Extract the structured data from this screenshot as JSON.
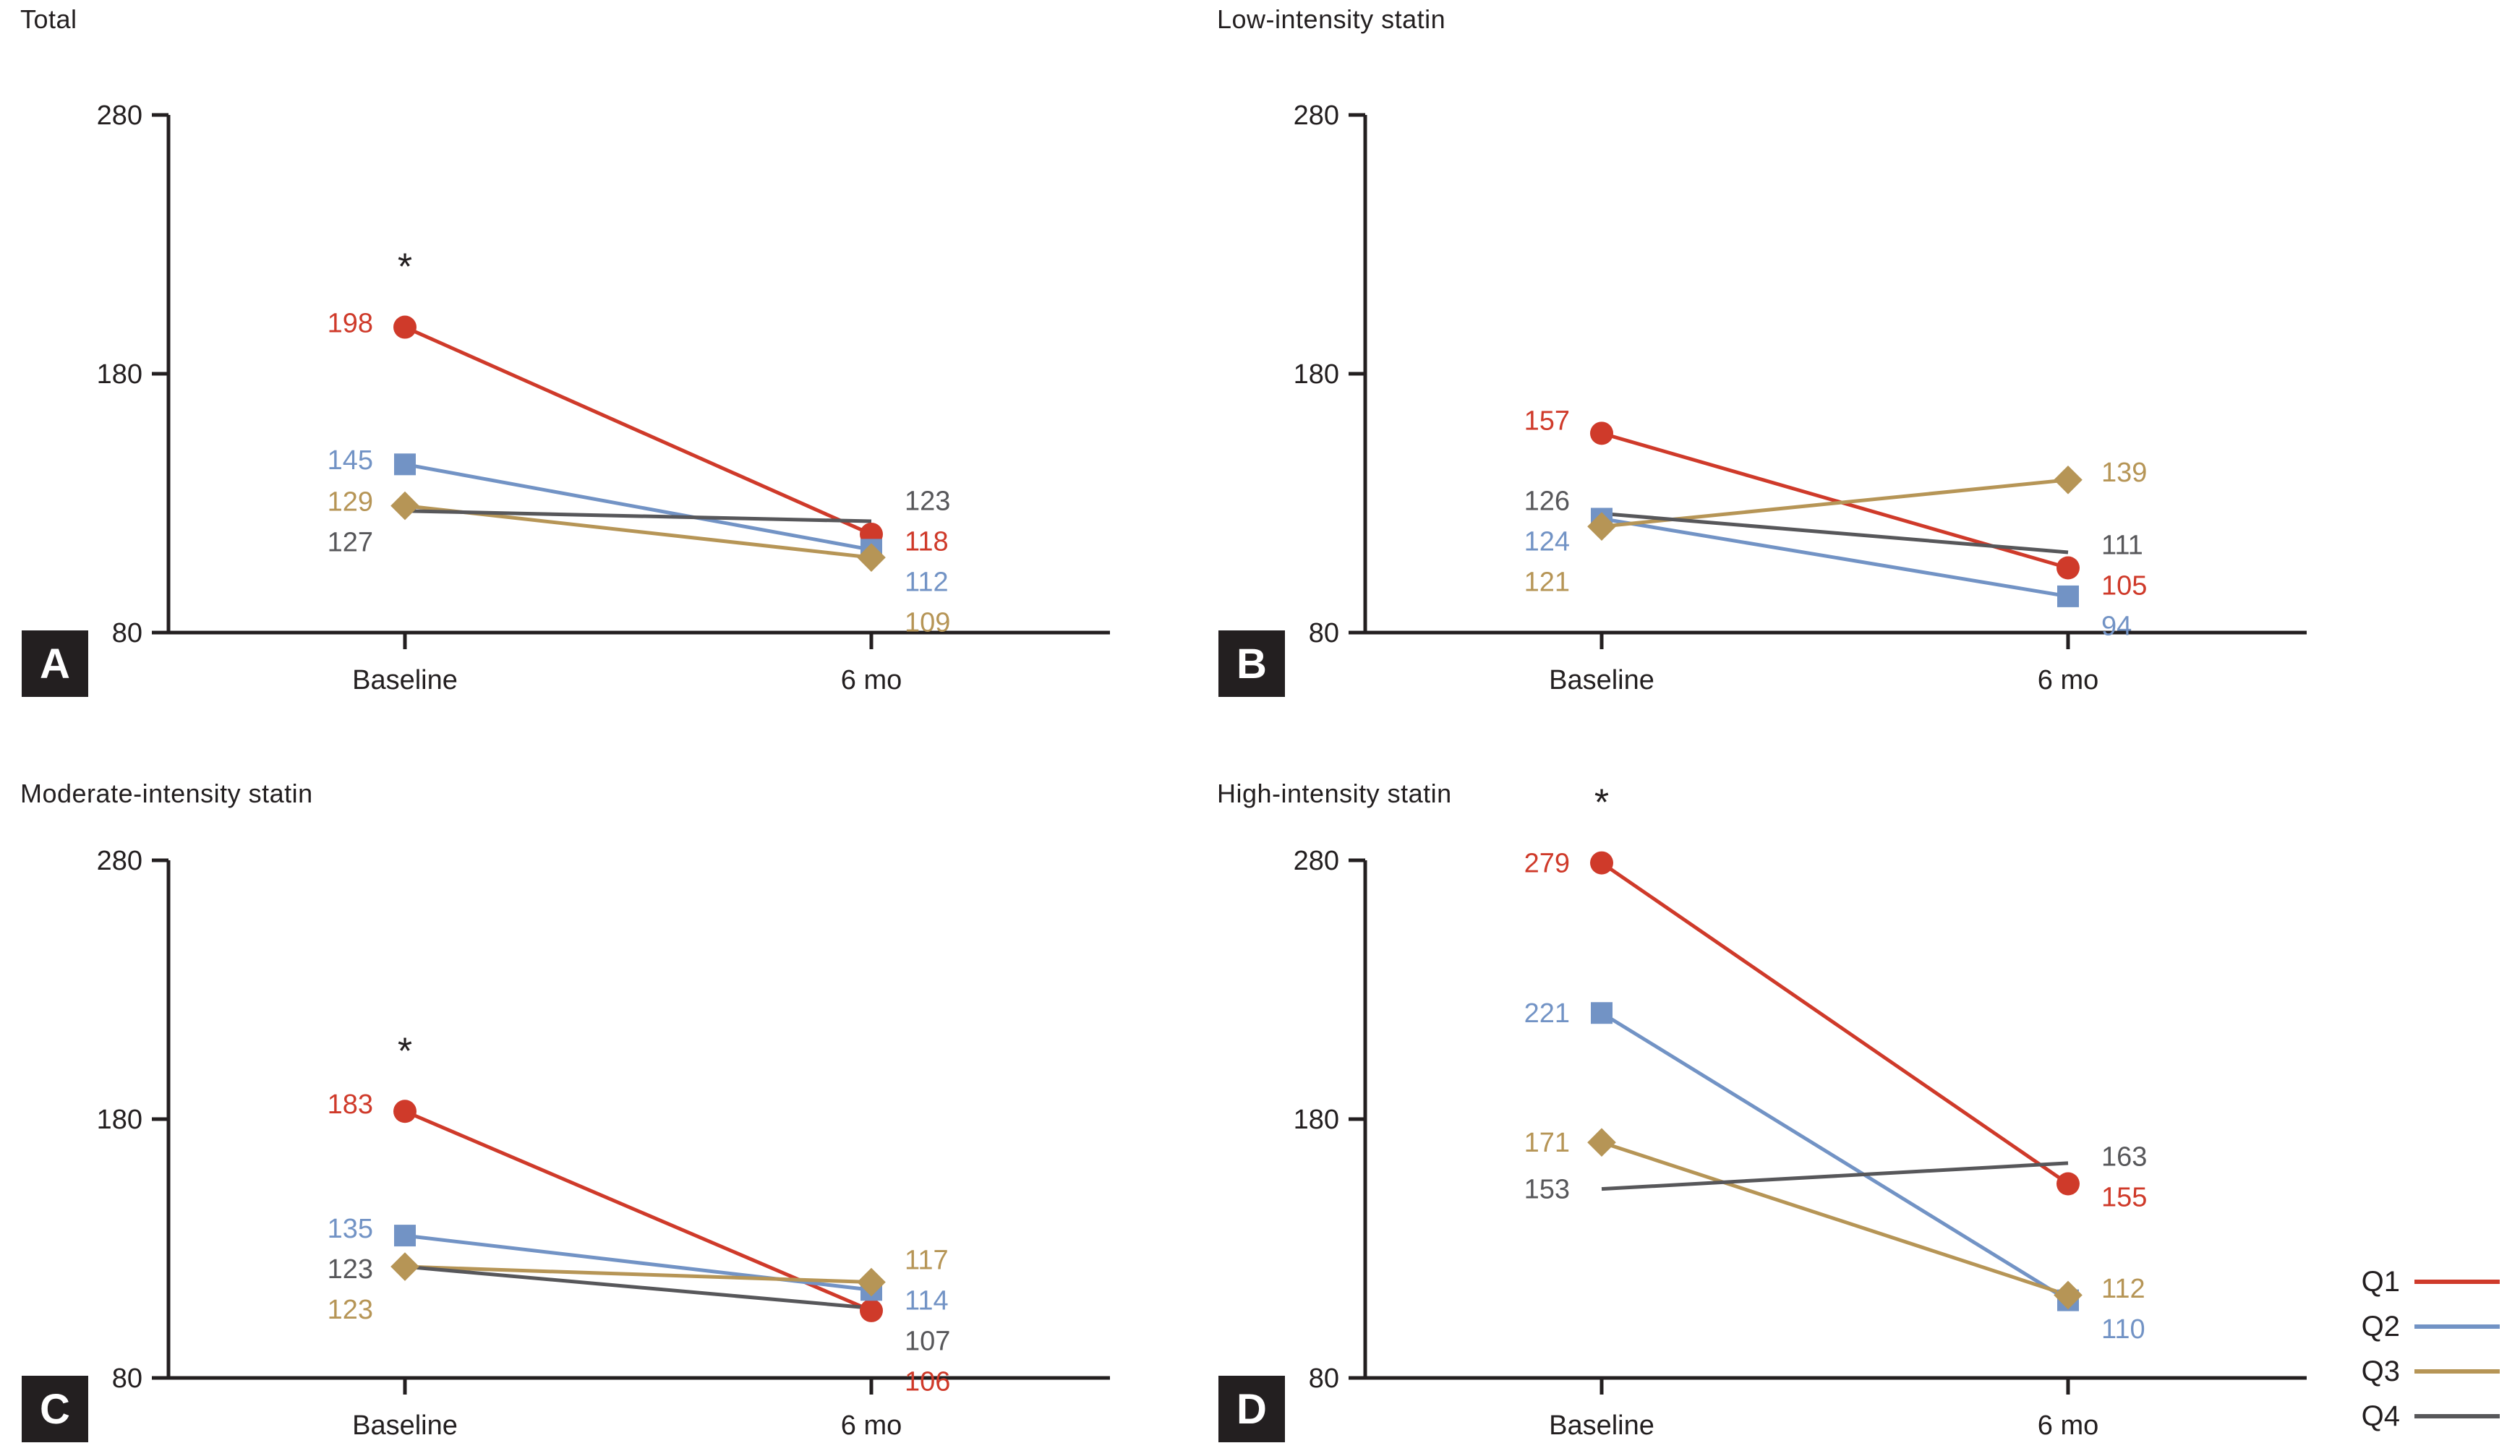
{
  "colors": {
    "q1": "#cf3a2a",
    "q2": "#7293c5",
    "q3": "#b69556",
    "q4": "#57575a",
    "axis": "#231f20",
    "text": "#231f20",
    "panel_label_bg": "#231f20",
    "panel_label_fg": "#ffffff"
  },
  "axes": {
    "ylim": [
      80,
      280
    ],
    "y_ticks": [
      280,
      180,
      80
    ],
    "x_ticks": [
      "Baseline",
      "6 mo"
    ],
    "grid": "off"
  },
  "legend": {
    "position": "bottom-right",
    "items": [
      {
        "label": "Q1",
        "color_key": "q1"
      },
      {
        "label": "Q2",
        "color_key": "q2"
      },
      {
        "label": "Q3",
        "color_key": "q3"
      },
      {
        "label": "Q4",
        "color_key": "q4"
      }
    ]
  },
  "chart_data": [
    {
      "id": "A",
      "type": "line",
      "title": "Total",
      "panel_letter": "A",
      "asterisk": "*",
      "x": [
        "Baseline",
        "6 mo"
      ],
      "ylim": [
        80,
        280
      ],
      "series": [
        {
          "name": "Q1",
          "color_key": "q1",
          "marker": "circle",
          "values": [
            198,
            118
          ]
        },
        {
          "name": "Q2",
          "color_key": "q2",
          "marker": "square",
          "values": [
            145,
            112
          ]
        },
        {
          "name": "Q3",
          "color_key": "q3",
          "marker": "diamond",
          "values": [
            129,
            109
          ]
        },
        {
          "name": "Q4",
          "color_key": "q4",
          "marker": "none",
          "values": [
            127,
            123
          ]
        }
      ]
    },
    {
      "id": "B",
      "type": "line",
      "title": "Low-intensity statin",
      "panel_letter": "B",
      "asterisk": "",
      "x": [
        "Baseline",
        "6 mo"
      ],
      "ylim": [
        80,
        280
      ],
      "series": [
        {
          "name": "Q1",
          "color_key": "q1",
          "marker": "circle",
          "values": [
            157,
            105
          ]
        },
        {
          "name": "Q2",
          "color_key": "q2",
          "marker": "square",
          "values": [
            124,
            94
          ]
        },
        {
          "name": "Q3",
          "color_key": "q3",
          "marker": "diamond",
          "values": [
            121,
            139
          ]
        },
        {
          "name": "Q4",
          "color_key": "q4",
          "marker": "none",
          "values": [
            126,
            111
          ]
        }
      ]
    },
    {
      "id": "C",
      "type": "line",
      "title": "Moderate-intensity statin",
      "panel_letter": "C",
      "asterisk": "*",
      "x": [
        "Baseline",
        "6 mo"
      ],
      "ylim": [
        80,
        280
      ],
      "series": [
        {
          "name": "Q1",
          "color_key": "q1",
          "marker": "circle",
          "values": [
            183,
            106
          ]
        },
        {
          "name": "Q2",
          "color_key": "q2",
          "marker": "square",
          "values": [
            135,
            114
          ]
        },
        {
          "name": "Q3",
          "color_key": "q3",
          "marker": "diamond",
          "values": [
            123,
            117
          ]
        },
        {
          "name": "Q4",
          "color_key": "q4",
          "marker": "none",
          "values": [
            123,
            107
          ]
        }
      ]
    },
    {
      "id": "D",
      "type": "line",
      "title": "High-intensity statin",
      "panel_letter": "D",
      "asterisk": "*",
      "x": [
        "Baseline",
        "6 mo"
      ],
      "ylim": [
        80,
        280
      ],
      "series": [
        {
          "name": "Q1",
          "color_key": "q1",
          "marker": "circle",
          "values": [
            279,
            155
          ]
        },
        {
          "name": "Q2",
          "color_key": "q2",
          "marker": "square",
          "values": [
            221,
            110
          ]
        },
        {
          "name": "Q3",
          "color_key": "q3",
          "marker": "diamond",
          "values": [
            171,
            112
          ]
        },
        {
          "name": "Q4",
          "color_key": "q4",
          "marker": "none",
          "values": [
            153,
            163
          ]
        }
      ]
    }
  ]
}
